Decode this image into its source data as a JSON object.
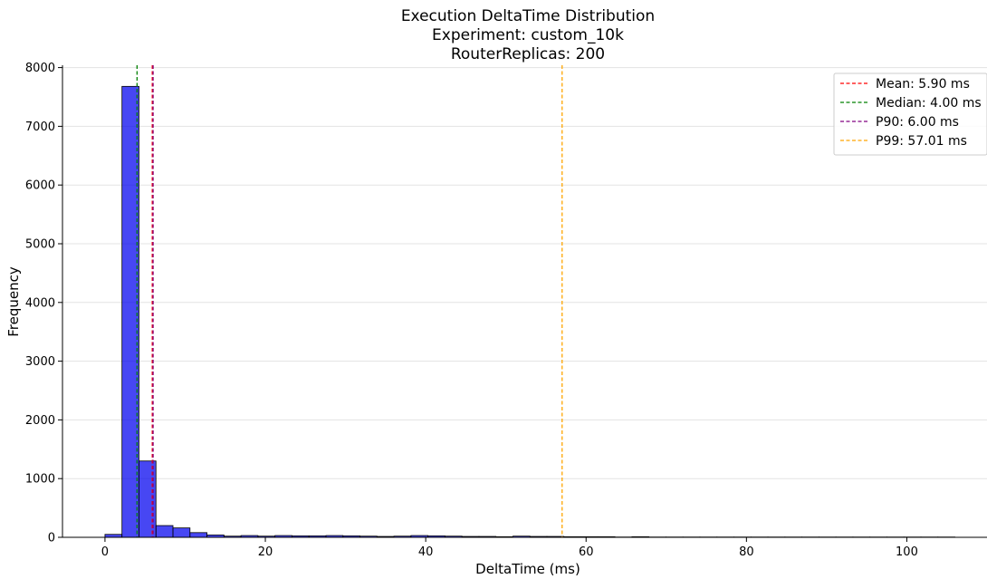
{
  "chart_data": {
    "type": "bar",
    "title": [
      "Execution DeltaTime Distribution",
      "Experiment: custom_10k",
      "RouterReplicas: 200"
    ],
    "xlabel": "DeltaTime (ms)",
    "ylabel": "Frequency",
    "xlim": [
      -5.3,
      110
    ],
    "ylim": [
      0,
      8040
    ],
    "xticks": [
      0,
      20,
      40,
      60,
      80,
      100
    ],
    "yticks": [
      0,
      1000,
      2000,
      3000,
      4000,
      5000,
      6000,
      7000,
      8000
    ],
    "grid": "horizontal",
    "legend_position": "top-right",
    "bin_edges": [
      0,
      2.12,
      4.24,
      6.36,
      8.48,
      10.6,
      12.72,
      14.84,
      16.96,
      19.08,
      21.2,
      23.32,
      25.44,
      27.56,
      29.68,
      31.8,
      33.92,
      36.04,
      38.16,
      40.28,
      42.4,
      44.52,
      46.64,
      48.76,
      50.88,
      53.0,
      55.12,
      57.24,
      59.36,
      61.48,
      63.6,
      65.72,
      67.84,
      69.96,
      72.08,
      74.2,
      76.32,
      78.44,
      80.56,
      82.68,
      84.8,
      86.92,
      89.04,
      91.16,
      93.28,
      95.4,
      97.52,
      99.64,
      101.76,
      103.88,
      106.0
    ],
    "values": [
      50,
      7680,
      1300,
      200,
      160,
      80,
      40,
      20,
      30,
      20,
      30,
      25,
      25,
      30,
      25,
      20,
      15,
      20,
      30,
      25,
      20,
      15,
      15,
      10,
      20,
      15,
      15,
      10,
      10,
      10,
      5,
      10,
      5,
      5,
      5,
      5,
      5,
      5,
      5,
      5,
      5,
      5,
      5,
      5,
      5,
      5,
      5,
      5,
      5,
      5
    ],
    "bar_color": "#0000ee",
    "edge_color": "#000000",
    "reference_lines": [
      {
        "label": "Mean: 5.90 ms",
        "x": 5.9,
        "color": "#ff0000"
      },
      {
        "label": "Median: 4.00 ms",
        "x": 4.0,
        "color": "#008000"
      },
      {
        "label": "P90: 6.00 ms",
        "x": 6.0,
        "color": "#800080"
      },
      {
        "label": "P99: 57.01 ms",
        "x": 57.01,
        "color": "#ffa500"
      }
    ]
  }
}
